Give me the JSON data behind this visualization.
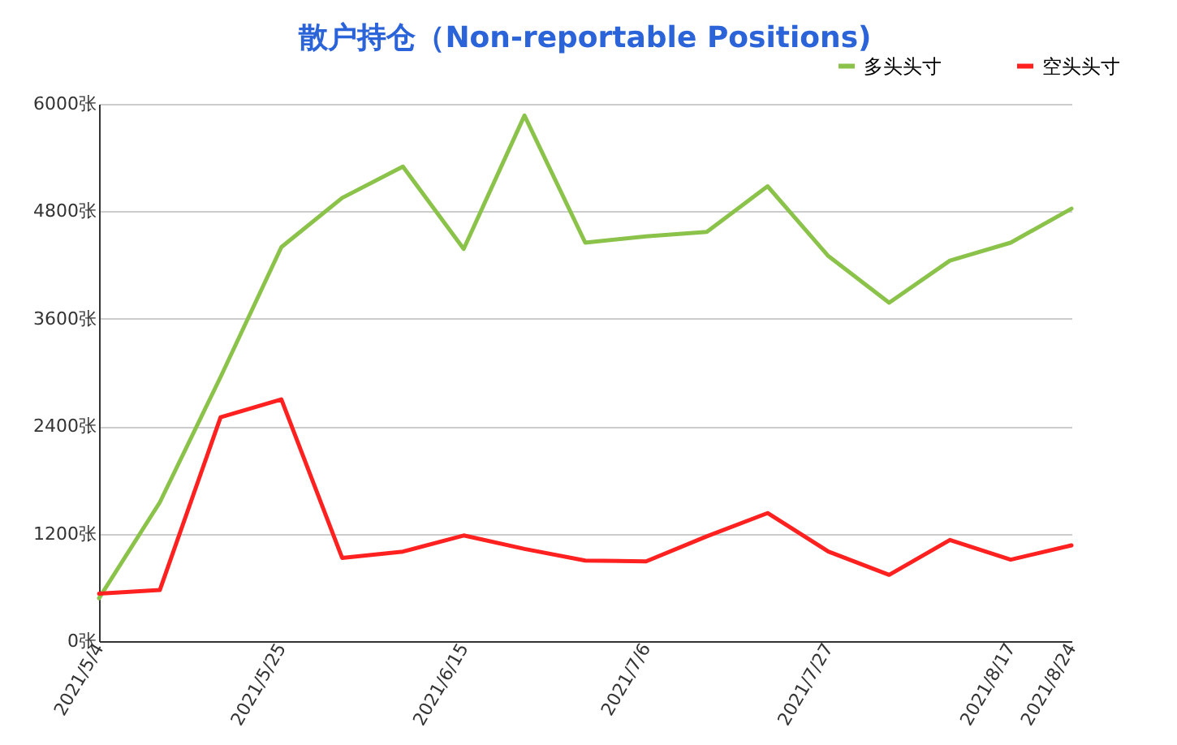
{
  "chart_data": {
    "type": "line",
    "title": "散户持仓（Non-reportable Positions)",
    "categories": [
      "2021/5/4",
      null,
      null,
      "2021/5/25",
      null,
      null,
      "2021/6/15",
      null,
      null,
      "2021/7/6",
      null,
      null,
      "2021/7/27",
      null,
      null,
      "2021/8/17",
      "2021/8/24"
    ],
    "series": [
      {
        "name": "多头头寸",
        "color": "#8bc34a",
        "values": [
          480,
          1550,
          2950,
          4400,
          4950,
          5300,
          4380,
          5870,
          4450,
          4520,
          4570,
          5080,
          4300,
          3780,
          4250,
          4450,
          4830
        ]
      },
      {
        "name": "空头头寸",
        "color": "#ff2020",
        "values": [
          530,
          570,
          2500,
          2700,
          930,
          1000,
          1180,
          1030,
          900,
          890,
          1170,
          1430,
          1000,
          740,
          1130,
          910,
          1070
        ]
      }
    ],
    "ylim": [
      0,
      6000
    ],
    "yticks": [
      {
        "value": 0,
        "label": "0张"
      },
      {
        "value": 1200,
        "label": "1200张"
      },
      {
        "value": 2400,
        "label": "2400张"
      },
      {
        "value": 3600,
        "label": "3600张"
      },
      {
        "value": 4800,
        "label": "4800张"
      },
      {
        "value": 6000,
        "label": "6000张"
      }
    ],
    "grid": "y",
    "legend": "top right",
    "marker": "none",
    "line_style": "solid"
  }
}
